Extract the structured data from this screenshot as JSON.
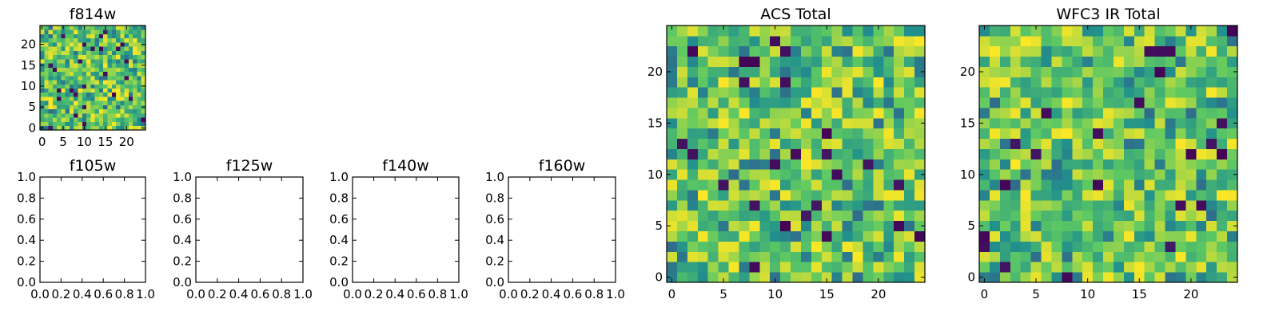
{
  "colors": {
    "colormap": "viridis",
    "stops": [
      "#440154",
      "#3b528b",
      "#21918c",
      "#5ec962",
      "#fde725"
    ]
  },
  "chart_data": [
    {
      "type": "heatmap",
      "title": "f814w",
      "grid": false,
      "xlim": [
        -0.5,
        24.5
      ],
      "ylim": [
        -0.5,
        24.5
      ],
      "xticks": [
        0,
        5,
        10,
        15,
        20
      ],
      "yticks": [
        0,
        5,
        10,
        15,
        20
      ],
      "xtick_labels": [
        "0",
        "5",
        "10",
        "15",
        "20"
      ],
      "ytick_labels": [
        "0",
        "5",
        "10",
        "15",
        "20"
      ],
      "rows": 25,
      "cols": 25,
      "seed": 814,
      "value_range": [
        0,
        1
      ]
    },
    {
      "type": "empty",
      "title": "f105w",
      "xlim": [
        0,
        1
      ],
      "ylim": [
        0,
        1
      ],
      "xticks": [
        0,
        0.2,
        0.4,
        0.6,
        0.8,
        1.0
      ],
      "yticks": [
        0,
        0.2,
        0.4,
        0.6,
        0.8,
        1.0
      ],
      "xtick_labels": [
        "0.0",
        "0.2",
        "0.4",
        "0.6",
        "0.8",
        "1.0"
      ],
      "ytick_labels": [
        "0.0",
        "0.2",
        "0.4",
        "0.6",
        "0.8",
        "1.0"
      ]
    },
    {
      "type": "empty",
      "title": "f125w",
      "xlim": [
        0,
        1
      ],
      "ylim": [
        0,
        1
      ],
      "xticks": [
        0,
        0.2,
        0.4,
        0.6,
        0.8,
        1.0
      ],
      "yticks": [
        0,
        0.2,
        0.4,
        0.6,
        0.8,
        1.0
      ],
      "xtick_labels": [
        "0.0",
        "0.2",
        "0.4",
        "0.6",
        "0.8",
        "1.0"
      ],
      "ytick_labels": [
        "0.0",
        "0.2",
        "0.4",
        "0.6",
        "0.8",
        "1.0"
      ]
    },
    {
      "type": "empty",
      "title": "f140w",
      "xlim": [
        0,
        1
      ],
      "ylim": [
        0,
        1
      ],
      "xticks": [
        0,
        0.2,
        0.4,
        0.6,
        0.8,
        1.0
      ],
      "yticks": [
        0,
        0.2,
        0.4,
        0.6,
        0.8,
        1.0
      ],
      "xtick_labels": [
        "0.0",
        "0.2",
        "0.4",
        "0.6",
        "0.8",
        "1.0"
      ],
      "ytick_labels": [
        "0.0",
        "0.2",
        "0.4",
        "0.6",
        "0.8",
        "1.0"
      ]
    },
    {
      "type": "empty",
      "title": "f160w",
      "xlim": [
        0,
        1
      ],
      "ylim": [
        0,
        1
      ],
      "xticks": [
        0,
        0.2,
        0.4,
        0.6,
        0.8,
        1.0
      ],
      "yticks": [
        0,
        0.2,
        0.4,
        0.6,
        0.8,
        1.0
      ],
      "xtick_labels": [
        "0.0",
        "0.2",
        "0.4",
        "0.6",
        "0.8",
        "1.0"
      ],
      "ytick_labels": [
        "0.0",
        "0.2",
        "0.4",
        "0.6",
        "0.8",
        "1.0"
      ]
    },
    {
      "type": "heatmap",
      "title": "ACS Total",
      "grid": false,
      "xlim": [
        -0.5,
        24.5
      ],
      "ylim": [
        -0.5,
        24.5
      ],
      "xticks": [
        0,
        5,
        10,
        15,
        20
      ],
      "yticks": [
        0,
        5,
        10,
        15,
        20
      ],
      "xtick_labels": [
        "0",
        "5",
        "10",
        "15",
        "20"
      ],
      "ytick_labels": [
        "0",
        "5",
        "10",
        "15",
        "20"
      ],
      "rows": 25,
      "cols": 25,
      "seed": 2201,
      "value_range": [
        0,
        1
      ]
    },
    {
      "type": "heatmap",
      "title": "WFC3 IR Total",
      "grid": false,
      "xlim": [
        -0.5,
        24.5
      ],
      "ylim": [
        -0.5,
        24.5
      ],
      "xticks": [
        0,
        5,
        10,
        15,
        20
      ],
      "yticks": [
        0,
        5,
        10,
        15,
        20
      ],
      "xtick_labels": [
        "0",
        "5",
        "10",
        "15",
        "20"
      ],
      "ytick_labels": [
        "0",
        "5",
        "10",
        "15",
        "20"
      ],
      "rows": 25,
      "cols": 25,
      "seed": 3309,
      "value_range": [
        0,
        1
      ]
    }
  ]
}
